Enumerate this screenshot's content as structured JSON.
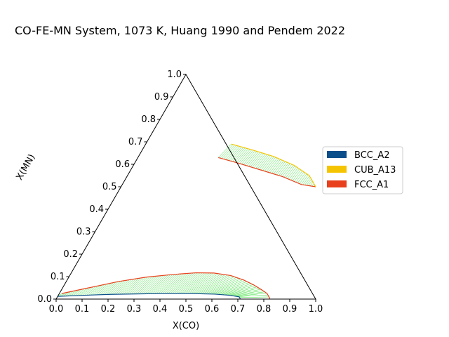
{
  "chart_data": {
    "type": "ternary",
    "title": "CO-FE-MN System, 1073 K, Huang 1990 and Pendem 2022",
    "xlabel": "X(CO)",
    "ylabel": "X(MN)",
    "xlim": [
      0,
      1
    ],
    "ylim": [
      0,
      1
    ],
    "xticks": [
      "0.0",
      "0.1",
      "0.2",
      "0.3",
      "0.4",
      "0.5",
      "0.6",
      "0.7",
      "0.8",
      "0.9",
      "1.0"
    ],
    "yticks": [
      "0.0",
      "0.1",
      "0.2",
      "0.3",
      "0.4",
      "0.5",
      "0.6",
      "0.7",
      "0.8",
      "0.9",
      "1.0"
    ],
    "legend_position": "right",
    "legend": [
      {
        "name": "BCC_A2",
        "color": "#0a4f8a"
      },
      {
        "name": "CUB_A13",
        "color": "#f5c400"
      },
      {
        "name": "FCC_A1",
        "color": "#e8401c"
      }
    ],
    "tieline_color": "#33dd33",
    "series": [
      {
        "phase": "FCC_A1",
        "color": "#e8401c",
        "points": [
          [
            0.31,
            0.63
          ],
          [
            0.4,
            0.605
          ],
          [
            0.5,
            0.575
          ],
          [
            0.6,
            0.545
          ],
          [
            0.69,
            0.51
          ],
          [
            0.75,
            0.5
          ]
        ]
      },
      {
        "phase": "CUB_A13",
        "color": "#f5c400",
        "points": [
          [
            0.33,
            0.69
          ],
          [
            0.42,
            0.665
          ],
          [
            0.52,
            0.635
          ],
          [
            0.62,
            0.595
          ],
          [
            0.7,
            0.55
          ],
          [
            0.75,
            0.5
          ]
        ]
      },
      {
        "phase": "FCC_A1",
        "color": "#e8401c",
        "points": [
          [
            0.01,
            0.025
          ],
          [
            0.1,
            0.05
          ],
          [
            0.2,
            0.078
          ],
          [
            0.3,
            0.098
          ],
          [
            0.4,
            0.11
          ],
          [
            0.48,
            0.117
          ],
          [
            0.55,
            0.116
          ],
          [
            0.62,
            0.105
          ],
          [
            0.68,
            0.085
          ],
          [
            0.73,
            0.063
          ],
          [
            0.77,
            0.042
          ],
          [
            0.8,
            0.025
          ],
          [
            0.82,
            0.005
          ],
          [
            0.822,
            0.0
          ]
        ]
      },
      {
        "phase": "BCC_A2",
        "color": "#0a4f8a",
        "points": [
          [
            0.0,
            0.012
          ],
          [
            0.1,
            0.017
          ],
          [
            0.2,
            0.021
          ],
          [
            0.3,
            0.023
          ],
          [
            0.4,
            0.025
          ],
          [
            0.5,
            0.025
          ],
          [
            0.6,
            0.022
          ],
          [
            0.66,
            0.017
          ],
          [
            0.7,
            0.01
          ],
          [
            0.71,
            0.0
          ]
        ]
      }
    ]
  }
}
